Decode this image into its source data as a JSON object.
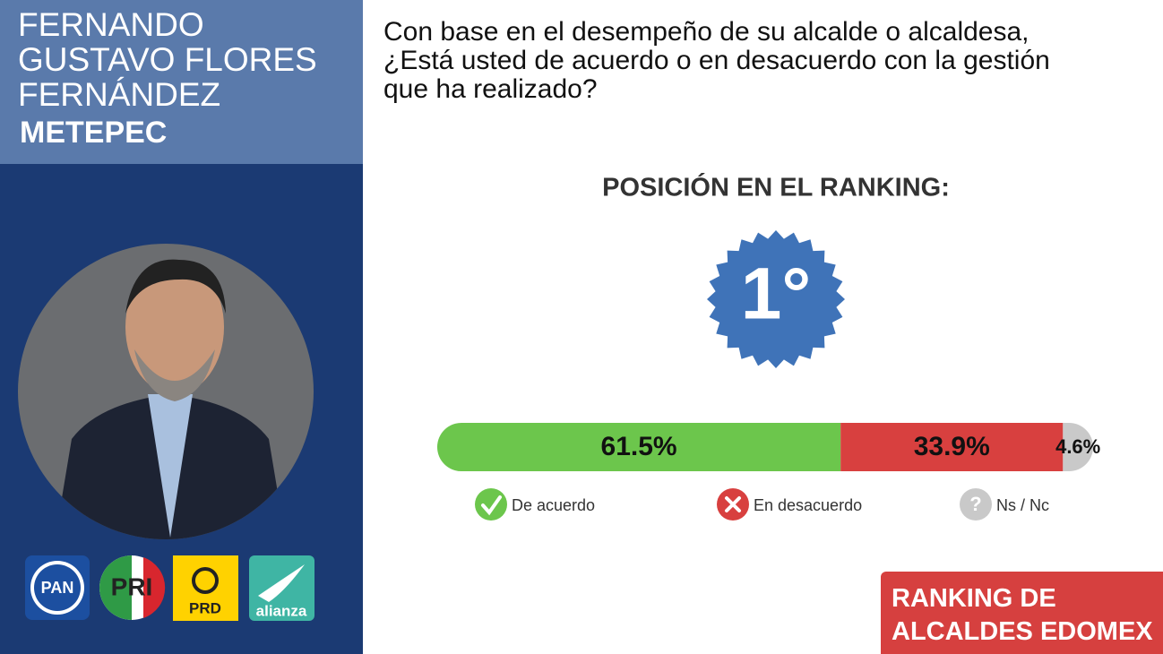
{
  "header": {
    "name_lines": [
      "FERNANDO",
      "GUSTAVO FLORES",
      "FERNÁNDEZ"
    ],
    "municipality": "METEPEC"
  },
  "parties": [
    "PAN",
    "PRI",
    "PRD",
    "alianza"
  ],
  "question_lines": [
    "Con base en el desempeño de su alcalde o alcaldesa,",
    "¿Está usted de acuerdo o en desacuerdo con la gestión",
    "que ha realizado?"
  ],
  "ranking": {
    "title": "POSICIÓN EN EL RANKING:",
    "position": "1°"
  },
  "chart_data": {
    "type": "stacked-bar",
    "orientation": "horizontal",
    "xlim": [
      0,
      100
    ],
    "series": [
      {
        "name": "De acuerdo",
        "color": "#6cc64c",
        "values": [
          61.5
        ],
        "value_labels": [
          "61.5%"
        ]
      },
      {
        "name": "En desacuerdo",
        "color": "#d8403f",
        "values": [
          33.9
        ],
        "value_labels": [
          "33.9%"
        ]
      },
      {
        "name": "Ns / Nc",
        "color": "#c9c9c9",
        "values": [
          4.6
        ],
        "value_labels": [
          "4.6%"
        ]
      }
    ]
  },
  "footer": {
    "lines": [
      "RANKING DE",
      "ALCALDES EDOMEX"
    ]
  }
}
